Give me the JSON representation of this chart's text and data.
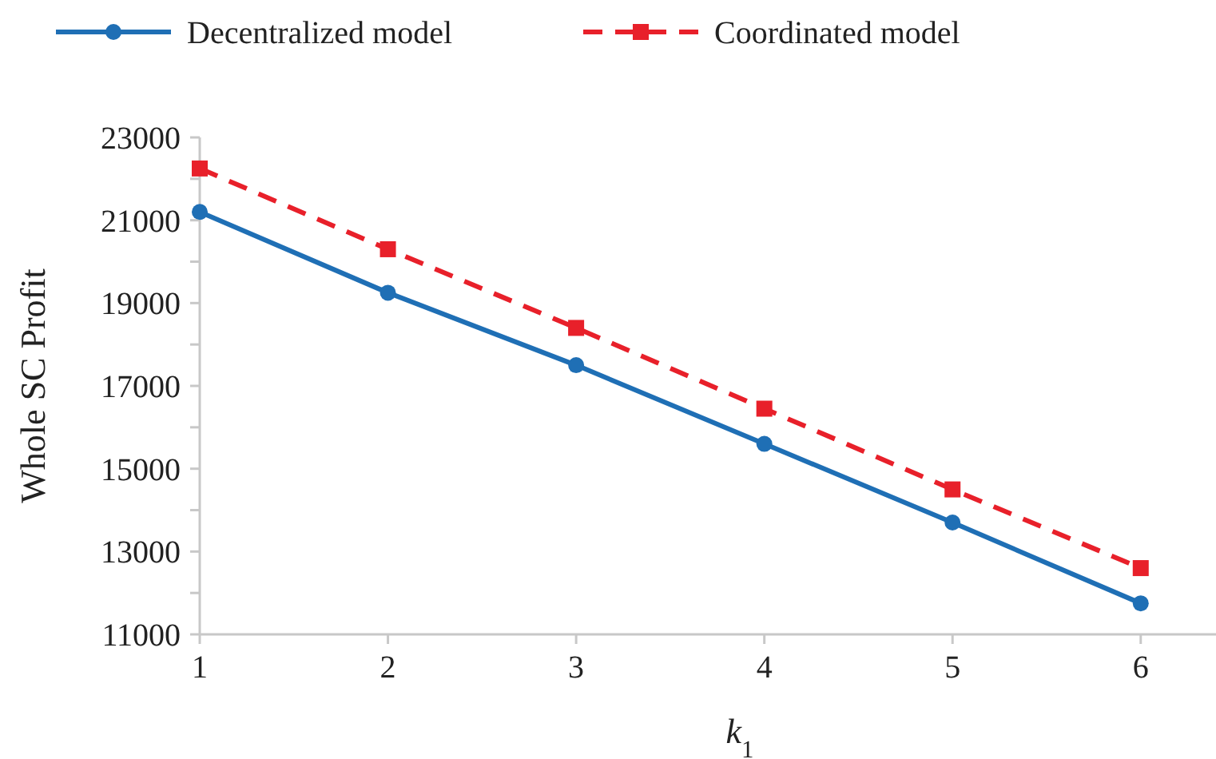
{
  "chart_data": {
    "type": "line",
    "xlabel": "k$_{1}$",
    "ylabel": "Whole SC Profit",
    "x": [
      1,
      2,
      3,
      4,
      5,
      6
    ],
    "xlim": [
      1,
      6.4
    ],
    "xticks": [
      1,
      2,
      3,
      4,
      5,
      6
    ],
    "ylim": [
      11000,
      23000
    ],
    "yticks": [
      11000,
      {
        "value": 12000,
        "label": null
      },
      13000,
      {
        "value": 14000,
        "label": null
      },
      15000,
      {
        "value": 16000,
        "label": null
      },
      17000,
      {
        "value": 18000,
        "label": null
      },
      19000,
      {
        "value": 20000,
        "label": null
      },
      21000,
      {
        "value": 22000,
        "label": null
      },
      23000
    ],
    "grid": false,
    "legend": "top",
    "series": [
      {
        "name": "Decentralized model",
        "color": "#1f6fb5",
        "values": [
          21200,
          19250,
          17500,
          15600,
          13700,
          11750
        ],
        "marker": "circle",
        "line_style": "solid"
      },
      {
        "name": "Coordinated model",
        "color": "#e8202a",
        "values": [
          22250,
          20300,
          18400,
          16450,
          14500,
          12600
        ],
        "marker": "square",
        "line_style": "dashed"
      }
    ]
  }
}
